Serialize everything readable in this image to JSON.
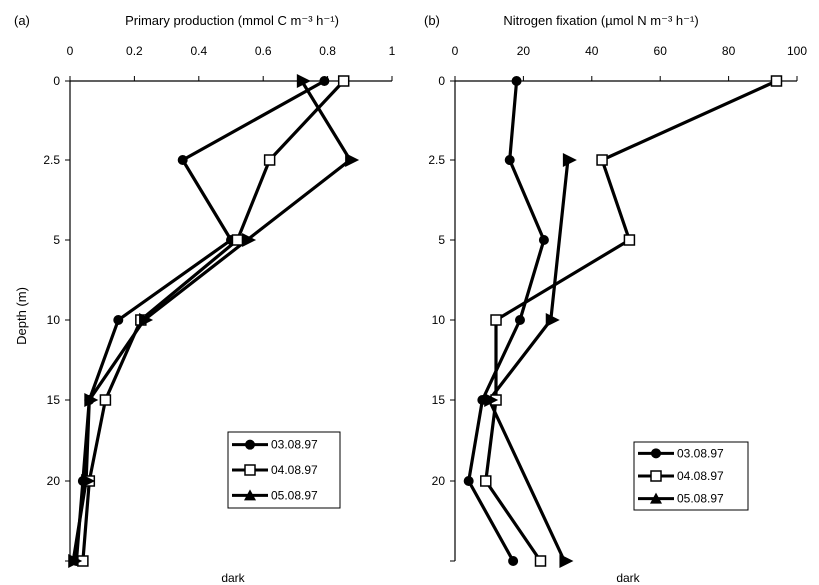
{
  "ylabel": "Depth (m)",
  "chart_data": [
    {
      "type": "line",
      "panel_label": "(a)",
      "title": "Primary production (mmol C m⁻³ h⁻¹)",
      "xlim": [
        0,
        1
      ],
      "x_ticks": [
        "0",
        "0.2",
        "0.4",
        "0.6",
        "0.8",
        "1"
      ],
      "ylim": [
        0,
        25
      ],
      "y_inverted": true,
      "y_ticks": [
        "0",
        "2.5",
        "5",
        "10",
        "15",
        "20"
      ],
      "bottom_label": "dark",
      "legend_placement": "bottom-right",
      "series": [
        {
          "name": "03.08.97",
          "marker": "circle",
          "dashed": false,
          "points": [
            {
              "x": 0.79,
              "y": 0
            },
            {
              "x": 0.35,
              "y": 2.5
            },
            {
              "x": 0.5,
              "y": 5
            },
            {
              "x": 0.15,
              "y": 10
            },
            {
              "x": 0.06,
              "y": 15
            },
            {
              "x": 0.04,
              "y": 20
            },
            {
              "x": 0.02,
              "y": 25
            }
          ]
        },
        {
          "name": "04.08.97",
          "marker": "square",
          "dashed": false,
          "points": [
            {
              "x": 0.85,
              "y": 0
            },
            {
              "x": 0.62,
              "y": 2.5
            },
            {
              "x": 0.52,
              "y": 5
            },
            {
              "x": 0.22,
              "y": 10
            },
            {
              "x": 0.11,
              "y": 15
            },
            {
              "x": 0.06,
              "y": 20
            },
            {
              "x": 0.04,
              "y": 25
            }
          ]
        },
        {
          "name": "05.08.97",
          "marker": "triangle",
          "dashed": false,
          "points": [
            {
              "x": 0.72,
              "y": 0
            },
            {
              "x": 0.87,
              "y": 2.5
            },
            {
              "x": 0.55,
              "y": 5
            },
            {
              "x": 0.23,
              "y": 10
            },
            {
              "x": 0.06,
              "y": 15
            },
            {
              "x": 0.05,
              "y": 20
            },
            {
              "x": 0.01,
              "y": 25
            }
          ]
        }
      ]
    },
    {
      "type": "line",
      "panel_label": "(b)",
      "title": "Nitrogen fixation (µmol N m⁻³ h⁻¹)",
      "xlim": [
        0,
        100
      ],
      "x_ticks": [
        "0",
        "20",
        "40",
        "60",
        "80",
        "100"
      ],
      "ylim": [
        0,
        25
      ],
      "y_inverted": true,
      "y_ticks": [
        "0",
        "2.5",
        "5",
        "10",
        "15",
        "20"
      ],
      "bottom_label": "dark",
      "legend_placement": "bottom-right",
      "series": [
        {
          "name": "03.08.97",
          "marker": "circle",
          "dashed": false,
          "points": [
            {
              "x": 18,
              "y": 0
            },
            {
              "x": 16,
              "y": 2.5
            },
            {
              "x": 26,
              "y": 5
            },
            {
              "x": 19,
              "y": 10
            },
            {
              "x": 8,
              "y": 15
            },
            {
              "x": 4,
              "y": 20
            },
            {
              "x": 17,
              "y": 25
            }
          ]
        },
        {
          "name": "04.08.97",
          "marker": "square",
          "dashed": false,
          "points": [
            {
              "x": 94,
              "y": 0
            },
            {
              "x": 43,
              "y": 2.5
            },
            {
              "x": 51,
              "y": 5
            },
            {
              "x": 12,
              "y": 10
            },
            {
              "x": 12,
              "y": 15
            },
            {
              "x": 9,
              "y": 20
            },
            {
              "x": 25,
              "y": 25
            }
          ]
        },
        {
          "name": "05.08.97",
          "marker": "triangle",
          "dashed": false,
          "points": [
            {
              "x": 33,
              "y": 2.5
            },
            {
              "x": 28,
              "y": 10
            },
            {
              "x": 10,
              "y": 15
            },
            {
              "x": 32,
              "y": 25
            }
          ]
        },
        {
          "name": "",
          "marker": "none",
          "dashed": true,
          "points": [
            {
              "x": 33,
              "y": 2.5
            },
            {
              "x": 28,
              "y": 10
            }
          ]
        }
      ]
    }
  ]
}
